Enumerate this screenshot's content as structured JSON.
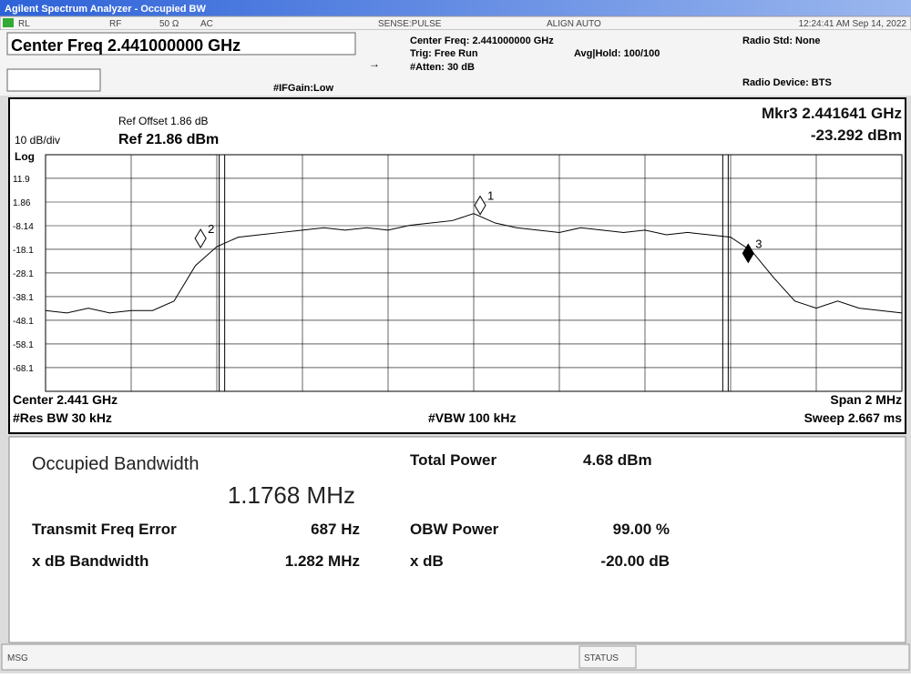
{
  "title_bar": "Agilent Spectrum Analyzer - Occupied BW",
  "status_row": {
    "rl": "RL",
    "rf": "RF",
    "impedance": "50 Ω",
    "coupling": "AC",
    "sense": "SENSE:PULSE",
    "align": "ALIGN AUTO",
    "datetime": "12:24:41 AM Sep 14, 2022"
  },
  "header": {
    "center_freq": "Center Freq 2.441000000 GHz",
    "center_freq_info": "Center Freq: 2.441000000 GHz",
    "trig": "Trig: Free Run",
    "avg_hold": "Avg|Hold: 100/100",
    "if_gain": "#IFGain:Low",
    "atten": "#Atten: 30 dB",
    "radio_std": "Radio Std: None",
    "radio_device": "Radio Device: BTS"
  },
  "graph": {
    "ref_offset": "Ref Offset 1.86 dB",
    "scale": "10 dB/div",
    "ref_level": "Ref 21.86 dBm",
    "log": "Log",
    "marker_readout_freq": "Mkr3 2.441641 GHz",
    "marker_readout_level": "-23.292 dBm",
    "center": "Center 2.441 GHz",
    "span": "Span 2 MHz",
    "res_bw": "#Res BW 30 kHz",
    "vbw": "#VBW 100 kHz",
    "sweep": "Sweep 2.667 ms"
  },
  "chart_data": {
    "type": "line",
    "xlim": [
      2.44,
      2.442
    ],
    "ylim": [
      -78.14,
      21.86
    ],
    "yticks": [
      11.9,
      1.86,
      -8.14,
      -18.1,
      -28.1,
      -38.1,
      -48.1,
      -58.1,
      -68.1
    ],
    "grid": true,
    "color": "#000000",
    "x": [
      2.44,
      2.44005,
      2.4401,
      2.44015,
      2.4402,
      2.44025,
      2.4403,
      2.44035,
      2.4404,
      2.44045,
      2.4405,
      2.44055,
      2.4406,
      2.44065,
      2.4407,
      2.44075,
      2.4408,
      2.44085,
      2.4409,
      2.44095,
      2.441,
      2.44105,
      2.4411,
      2.44115,
      2.4412,
      2.44125,
      2.4413,
      2.44135,
      2.4414,
      2.44145,
      2.4415,
      2.44155,
      2.4416,
      2.44165,
      2.4417,
      2.44175,
      2.4418,
      2.44185,
      2.4419,
      2.44195,
      2.442
    ],
    "values": [
      -44,
      -45,
      -43,
      -45,
      -44,
      -44,
      -40,
      -25,
      -17,
      -13,
      -12,
      -11,
      -10,
      -9,
      -10,
      -9,
      -10,
      -8,
      -7,
      -6,
      -3,
      -7,
      -9,
      -10,
      -11,
      -9,
      -10,
      -11,
      -10,
      -12,
      -11,
      -12,
      -13,
      -19,
      -30,
      -40,
      -43,
      -40,
      -43,
      -44,
      -45
    ],
    "markers": [
      {
        "label": "1",
        "x": 2.441015,
        "y": -3
      },
      {
        "label": "2",
        "x": 2.440362,
        "y": -17
      },
      {
        "label": "3",
        "x": 2.441641,
        "y": -23.292
      }
    ],
    "obw_edges": [
      2.440412,
      2.441588
    ]
  },
  "results": {
    "obw_label": "Occupied Bandwidth",
    "obw_value": "1.1768 MHz",
    "total_power_label": "Total Power",
    "total_power_value": "4.68 dBm",
    "tfe_label": "Transmit Freq Error",
    "tfe_value": "687 Hz",
    "obw_power_label": "OBW Power",
    "obw_power_value": "99.00 %",
    "xdb_bw_label": "x dB Bandwidth",
    "xdb_bw_value": "1.282 MHz",
    "xdb_label": "x dB",
    "xdb_value": "-20.00 dB"
  },
  "status_bar": {
    "msg": "MSG",
    "status": "STATUS"
  }
}
